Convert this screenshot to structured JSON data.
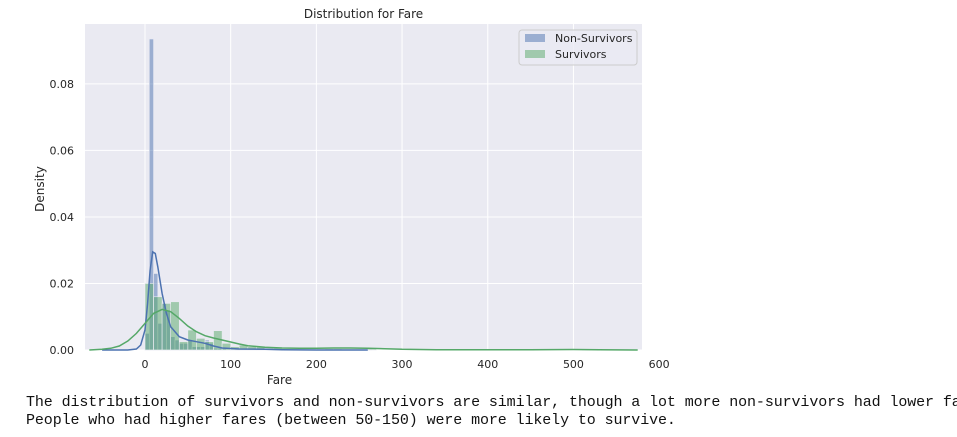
{
  "chart_data": {
    "type": "histogram",
    "title": "Distribution for Fare",
    "xlabel": "Fare",
    "ylabel": "Density",
    "xlim": [
      -70,
      580
    ],
    "ylim": [
      0,
      0.098
    ],
    "xticks": [
      0,
      100,
      200,
      300,
      400,
      500,
      600
    ],
    "yticks": [
      0.0,
      0.02,
      0.04,
      0.06,
      0.08
    ],
    "ytick_labels": [
      "0.00",
      "0.02",
      "0.04",
      "0.06",
      "0.08"
    ],
    "grid": true,
    "legend_position": "top-right",
    "series": [
      {
        "name": "Non-Survivors",
        "color": "#4c72b0",
        "bars": [
          {
            "x0": 0,
            "x1": 5,
            "y": 0.005
          },
          {
            "x0": 5,
            "x1": 10,
            "y": 0.0935
          },
          {
            "x0": 10,
            "x1": 15,
            "y": 0.023
          },
          {
            "x0": 15,
            "x1": 20,
            "y": 0.008
          },
          {
            "x0": 20,
            "x1": 25,
            "y": 0.014
          },
          {
            "x0": 25,
            "x1": 30,
            "y": 0.012
          },
          {
            "x0": 30,
            "x1": 35,
            "y": 0.004
          },
          {
            "x0": 35,
            "x1": 40,
            "y": 0.003
          },
          {
            "x0": 40,
            "x1": 45,
            "y": 0.002
          },
          {
            "x0": 45,
            "x1": 50,
            "y": 0.002
          },
          {
            "x0": 50,
            "x1": 55,
            "y": 0.003
          },
          {
            "x0": 55,
            "x1": 60,
            "y": 0.001
          },
          {
            "x0": 60,
            "x1": 65,
            "y": 0.001
          },
          {
            "x0": 65,
            "x1": 70,
            "y": 0.001
          },
          {
            "x0": 70,
            "x1": 75,
            "y": 0.003
          },
          {
            "x0": 75,
            "x1": 80,
            "y": 0.002
          },
          {
            "x0": 80,
            "x1": 85,
            "y": 0.0005
          },
          {
            "x0": 85,
            "x1": 90,
            "y": 0.0005
          },
          {
            "x0": 90,
            "x1": 95,
            "y": 0.0005
          },
          {
            "x0": 105,
            "x1": 110,
            "y": 0.0005
          },
          {
            "x0": 150,
            "x1": 155,
            "y": 0.0003
          },
          {
            "x0": 260,
            "x1": 265,
            "y": 0.0003
          }
        ],
        "kde": [
          {
            "x": -50,
            "y": 0.0
          },
          {
            "x": -20,
            "y": 0.0
          },
          {
            "x": -10,
            "y": 0.0003
          },
          {
            "x": -5,
            "y": 0.0015
          },
          {
            "x": 0,
            "y": 0.006
          },
          {
            "x": 3,
            "y": 0.014
          },
          {
            "x": 6,
            "y": 0.024
          },
          {
            "x": 9,
            "y": 0.0295
          },
          {
            "x": 12,
            "y": 0.029
          },
          {
            "x": 15,
            "y": 0.025
          },
          {
            "x": 20,
            "y": 0.017
          },
          {
            "x": 25,
            "y": 0.011
          },
          {
            "x": 30,
            "y": 0.007
          },
          {
            "x": 40,
            "y": 0.004
          },
          {
            "x": 50,
            "y": 0.003
          },
          {
            "x": 60,
            "y": 0.0025
          },
          {
            "x": 70,
            "y": 0.002
          },
          {
            "x": 80,
            "y": 0.0012
          },
          {
            "x": 90,
            "y": 0.0006
          },
          {
            "x": 110,
            "y": 0.0003
          },
          {
            "x": 140,
            "y": 0.0002
          },
          {
            "x": 160,
            "y": 0.0001
          },
          {
            "x": 200,
            "y": 0.0
          },
          {
            "x": 260,
            "y": 0.0
          }
        ]
      },
      {
        "name": "Survivors",
        "color": "#55a868",
        "bars": [
          {
            "x0": 0,
            "x1": 10,
            "y": 0.02
          },
          {
            "x0": 10,
            "x1": 20,
            "y": 0.016
          },
          {
            "x0": 20,
            "x1": 30,
            "y": 0.014
          },
          {
            "x0": 30,
            "x1": 40,
            "y": 0.0145
          },
          {
            "x0": 40,
            "x1": 50,
            "y": 0.0025
          },
          {
            "x0": 50,
            "x1": 60,
            "y": 0.006
          },
          {
            "x0": 60,
            "x1": 70,
            "y": 0.0035
          },
          {
            "x0": 70,
            "x1": 80,
            "y": 0.0025
          },
          {
            "x0": 80,
            "x1": 90,
            "y": 0.0058
          },
          {
            "x0": 90,
            "x1": 100,
            "y": 0.002
          },
          {
            "x0": 100,
            "x1": 110,
            "y": 0.001
          },
          {
            "x0": 110,
            "x1": 120,
            "y": 0.0015
          },
          {
            "x0": 120,
            "x1": 130,
            "y": 0.001
          },
          {
            "x0": 130,
            "x1": 140,
            "y": 0.001
          },
          {
            "x0": 140,
            "x1": 150,
            "y": 0.0005
          },
          {
            "x0": 150,
            "x1": 160,
            "y": 0.0005
          },
          {
            "x0": 210,
            "x1": 220,
            "y": 0.0003
          },
          {
            "x0": 220,
            "x1": 230,
            "y": 0.0003
          },
          {
            "x0": 260,
            "x1": 270,
            "y": 0.0003
          },
          {
            "x0": 510,
            "x1": 520,
            "y": 0.0003
          }
        ],
        "kde": [
          {
            "x": -65,
            "y": 0.0
          },
          {
            "x": -50,
            "y": 0.0002
          },
          {
            "x": -40,
            "y": 0.0005
          },
          {
            "x": -30,
            "y": 0.0012
          },
          {
            "x": -20,
            "y": 0.0027
          },
          {
            "x": -10,
            "y": 0.005
          },
          {
            "x": 0,
            "y": 0.008
          },
          {
            "x": 10,
            "y": 0.011
          },
          {
            "x": 20,
            "y": 0.0122
          },
          {
            "x": 30,
            "y": 0.0115
          },
          {
            "x": 40,
            "y": 0.0095
          },
          {
            "x": 50,
            "y": 0.0072
          },
          {
            "x": 60,
            "y": 0.0055
          },
          {
            "x": 70,
            "y": 0.0043
          },
          {
            "x": 80,
            "y": 0.0036
          },
          {
            "x": 90,
            "y": 0.003
          },
          {
            "x": 100,
            "y": 0.0024
          },
          {
            "x": 110,
            "y": 0.0018
          },
          {
            "x": 120,
            "y": 0.0013
          },
          {
            "x": 140,
            "y": 0.0008
          },
          {
            "x": 160,
            "y": 0.0006
          },
          {
            "x": 180,
            "y": 0.0005
          },
          {
            "x": 200,
            "y": 0.0005
          },
          {
            "x": 220,
            "y": 0.0006
          },
          {
            "x": 240,
            "y": 0.0006
          },
          {
            "x": 260,
            "y": 0.0005
          },
          {
            "x": 280,
            "y": 0.0004
          },
          {
            "x": 300,
            "y": 0.0002
          },
          {
            "x": 340,
            "y": 0.0001
          },
          {
            "x": 400,
            "y": 5e-05
          },
          {
            "x": 450,
            "y": 0.0001
          },
          {
            "x": 500,
            "y": 0.00015
          },
          {
            "x": 530,
            "y": 0.0001
          },
          {
            "x": 575,
            "y": 0.0
          }
        ]
      }
    ]
  },
  "caption": {
    "line1": "The distribution of survivors and non-survivors are similar, though a lot more non-survivors had lower fares.",
    "line2": "People who had higher fares (between 50-150) were more likely to survive."
  }
}
